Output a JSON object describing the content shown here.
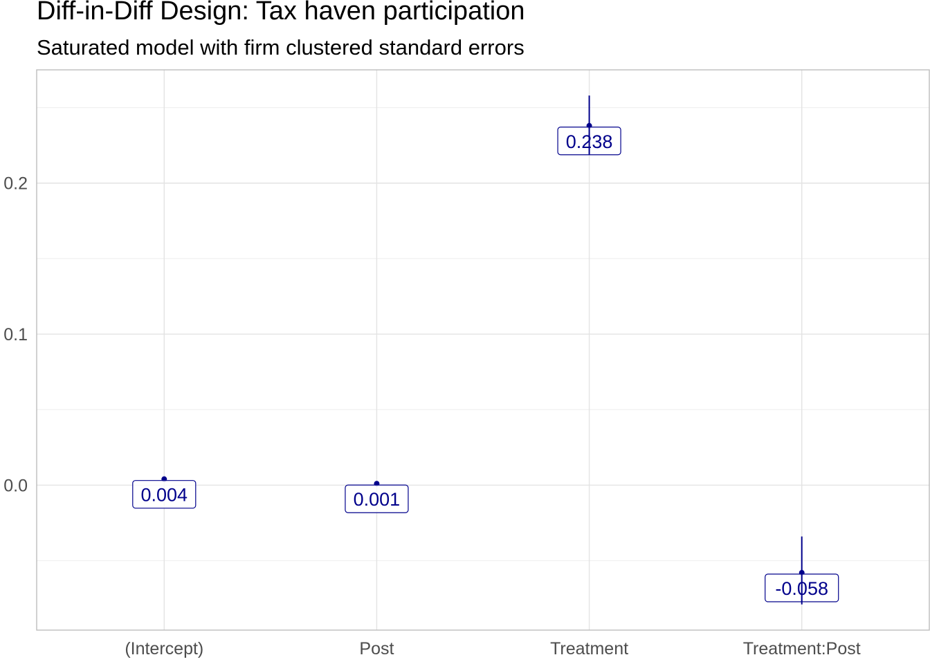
{
  "chart_data": {
    "type": "scatter",
    "title": "Diff-in-Diff Design: Tax haven participation",
    "subtitle": "Saturated model with firm clustered standard errors",
    "xlabel": "",
    "ylabel": "",
    "categories": [
      "(Intercept)",
      "Post",
      "Treatment",
      "Treatment:Post"
    ],
    "estimates": [
      0.004,
      0.001,
      0.238,
      -0.058
    ],
    "ci_low": [
      0.003,
      0.0,
      0.219,
      -0.079
    ],
    "ci_high": [
      0.005,
      0.002,
      0.258,
      -0.034
    ],
    "labels": [
      "0.004",
      "0.001",
      "0.238",
      "-0.058"
    ],
    "ylim": [
      -0.096,
      0.275
    ],
    "yticks": [
      0.0,
      0.1,
      0.2
    ],
    "ytick_labels": [
      "0.0",
      "0.1",
      "0.2"
    ],
    "grid": true,
    "colors": {
      "points": "#00008b",
      "grid": "#ebebeb",
      "panel_border": "#bdbdbd"
    }
  }
}
